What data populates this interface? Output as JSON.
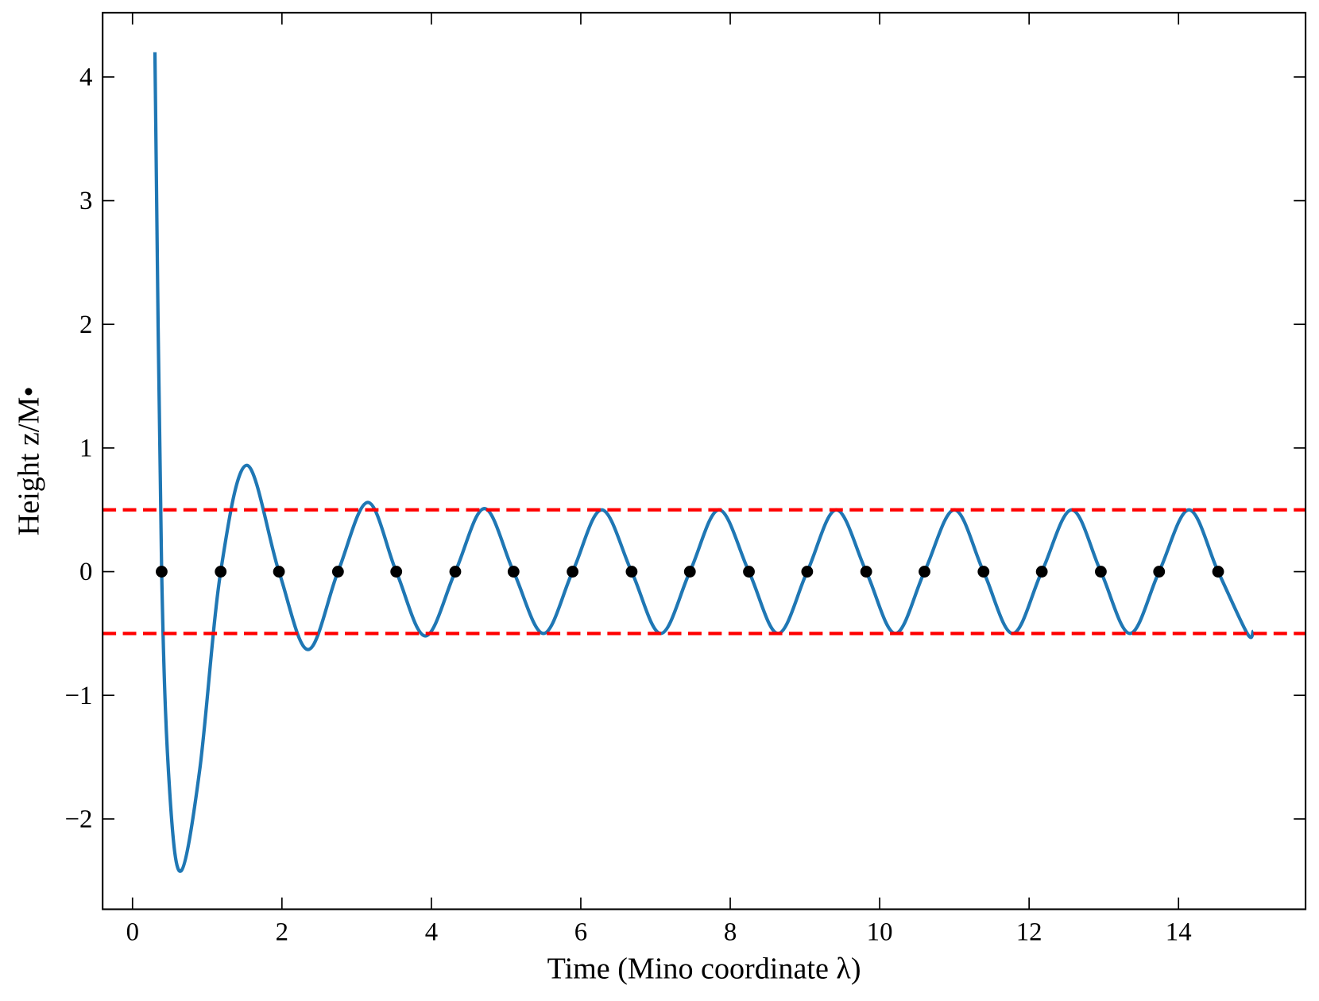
{
  "chart_data": {
    "type": "line",
    "xlabel": "Time (Mino coordinate λ)",
    "ylabel": "Height z/M•",
    "xlim": [
      -0.4,
      15.7
    ],
    "ylim": [
      -2.73,
      4.52
    ],
    "xticks": [
      0,
      2,
      4,
      6,
      8,
      10,
      12,
      14
    ],
    "yticks": [
      {
        "value": -2,
        "label": "−2"
      },
      {
        "value": -1,
        "label": "−1"
      },
      0,
      1,
      2,
      3,
      4
    ],
    "line": {
      "color": "#1f77b4",
      "x": [
        0.3,
        0.39,
        0.5,
        0.65,
        0.9,
        1.18,
        1.53,
        1.96,
        2.35,
        2.75,
        3.15,
        3.53,
        3.92,
        4.32,
        4.71,
        5.1,
        5.5,
        5.89,
        6.28,
        6.68,
        7.07,
        7.46,
        7.85,
        8.25,
        8.64,
        9.03,
        9.42,
        9.82,
        10.21,
        10.6,
        11.0,
        11.39,
        11.78,
        12.17,
        12.57,
        12.96,
        13.35,
        13.74,
        14.14,
        14.53,
        14.92,
        15.0
      ],
      "y": [
        4.2,
        0,
        -1.8,
        -2.42,
        -1.6,
        0,
        0.86,
        0,
        -0.63,
        0,
        0.56,
        0,
        -0.52,
        0,
        0.51,
        0,
        -0.5,
        0,
        0.5,
        0,
        -0.5,
        0,
        0.5,
        0,
        -0.5,
        0,
        0.5,
        0,
        -0.5,
        0,
        0.5,
        0,
        -0.5,
        0,
        0.5,
        0,
        -0.5,
        0,
        0.5,
        0,
        -0.5,
        -0.48
      ]
    },
    "points": {
      "color": "#000000",
      "x": [
        0.39,
        1.18,
        1.96,
        2.75,
        3.53,
        4.32,
        5.1,
        5.89,
        6.68,
        7.46,
        8.25,
        9.03,
        9.82,
        10.6,
        11.39,
        12.17,
        12.96,
        13.74,
        14.53
      ],
      "y": [
        0,
        0,
        0,
        0,
        0,
        0,
        0,
        0,
        0,
        0,
        0,
        0,
        0,
        0,
        0,
        0,
        0,
        0,
        0
      ]
    },
    "hlines": [
      {
        "y": 0.5,
        "color": "#ff0000",
        "dashed": true
      },
      {
        "y": -0.5,
        "color": "#ff0000",
        "dashed": true
      }
    ]
  }
}
